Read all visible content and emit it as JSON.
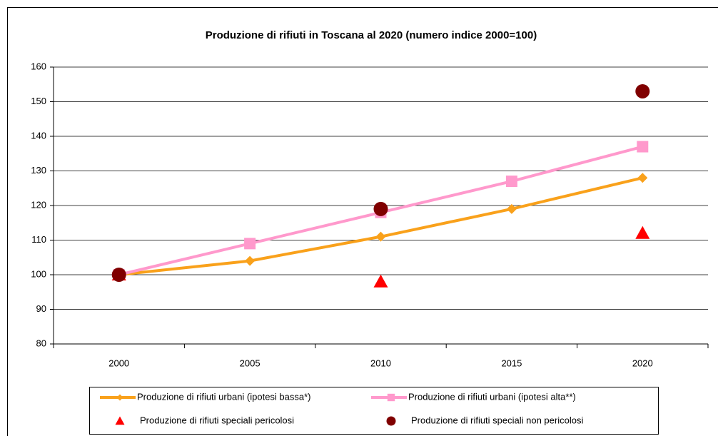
{
  "chart_data": {
    "type": "line",
    "title": "Produzione di rifiuti in Toscana al 2020 (numero indice 2000=100)",
    "categories": [
      "2000",
      "2005",
      "2010",
      "2015",
      "2020"
    ],
    "series": [
      {
        "name": "Produzione di rifiuti urbani (ipotesi bassa*)",
        "color": "#f9a11b",
        "marker": "diamond",
        "line": true,
        "values": [
          100,
          104,
          111,
          119,
          128
        ]
      },
      {
        "name": "Produzione di rifiuti urbani (ipotesi alta**)",
        "color": "#ff99cc",
        "marker": "square",
        "line": true,
        "values": [
          100,
          109,
          118,
          127,
          137
        ]
      },
      {
        "name": "Produzione di rifiuti speciali pericolosi",
        "color": "#ff0000",
        "marker": "triangle",
        "line": false,
        "values": [
          100,
          null,
          98,
          null,
          112
        ]
      },
      {
        "name": "Produzione di rifiuti speciali non pericolosi",
        "color": "#800000",
        "marker": "circle",
        "line": false,
        "values": [
          100,
          null,
          119,
          null,
          153
        ]
      }
    ],
    "ylim": [
      80,
      160
    ],
    "yticks": [
      80,
      90,
      100,
      110,
      120,
      130,
      140,
      150,
      160
    ],
    "grid": true,
    "legend": "bottom"
  }
}
